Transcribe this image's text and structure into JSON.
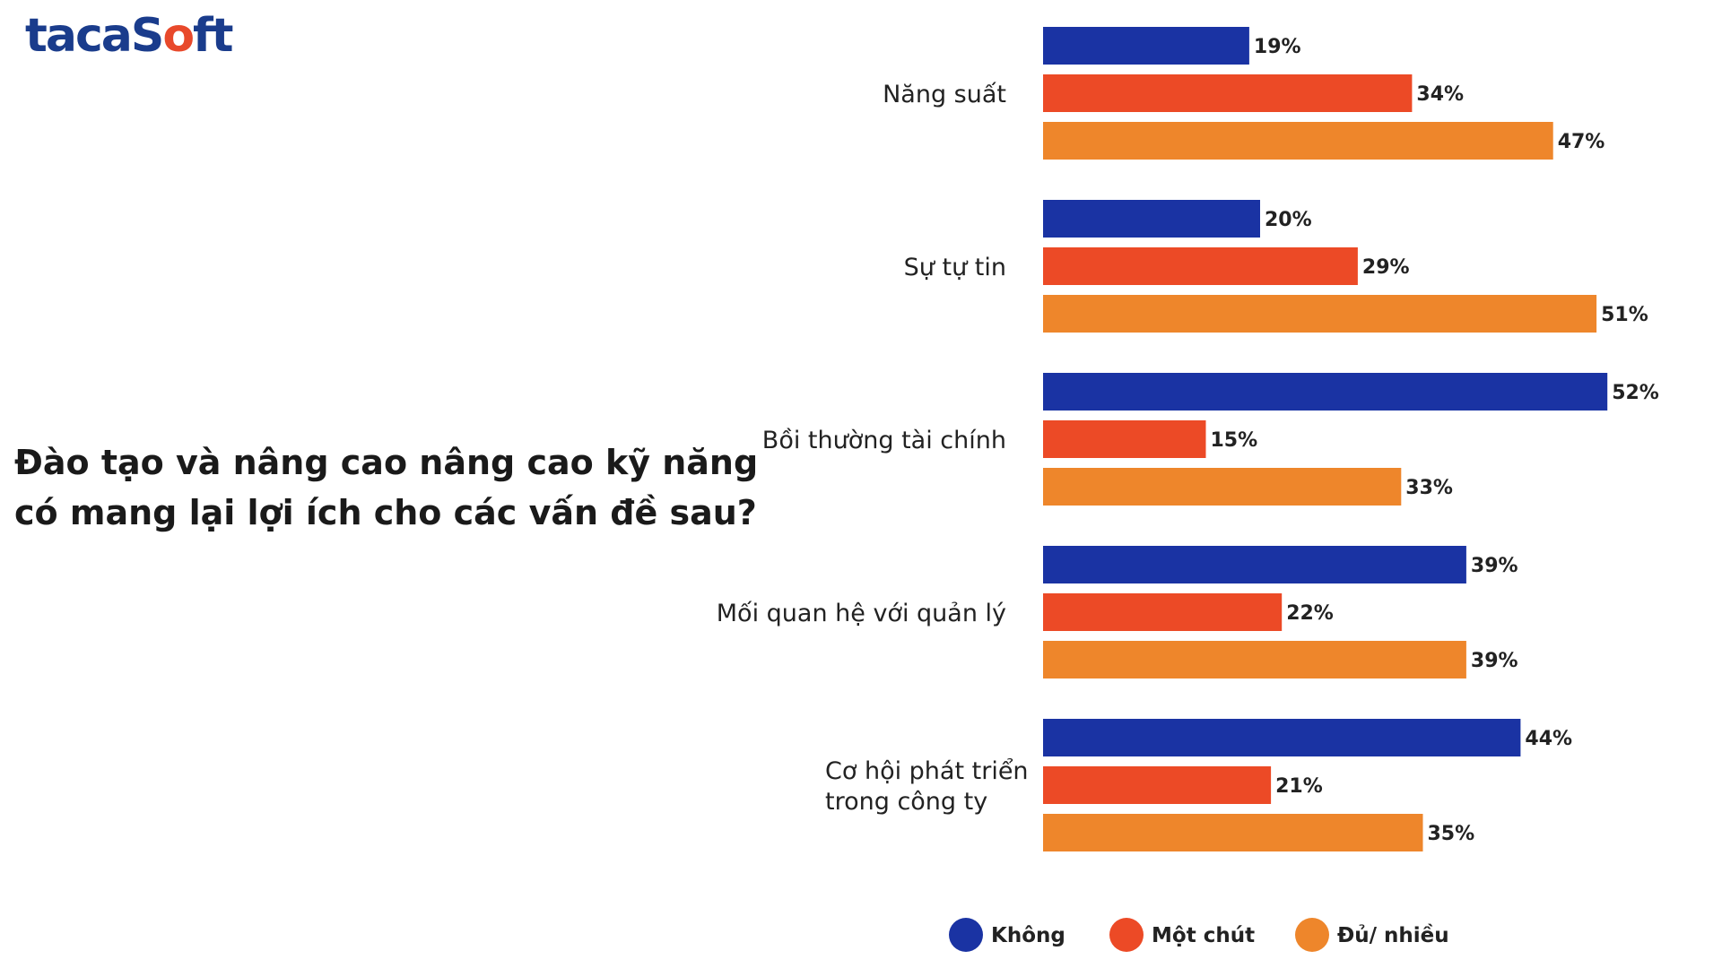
{
  "brand": {
    "logo_text_pre": "tacaS",
    "logo_text_accent": "o",
    "logo_text_post": "ft"
  },
  "question": {
    "line1": "Đào tạo và nâng cao nâng cao kỹ năng",
    "line2": "có mang lại lợi ích cho các vấn đề sau?"
  },
  "colors": {
    "brand_blue": "#1a3c8c",
    "brand_orange": "#e8492b"
  },
  "chart_data": {
    "type": "bar",
    "orientation": "horizontal",
    "categories": [
      [
        "Năng suất"
      ],
      [
        "Sự tự tin"
      ],
      [
        "Bồi thường tài chính"
      ],
      [
        "Mối quan hệ với quản lý"
      ],
      [
        "Cơ hội phát triển",
        "trong công ty"
      ]
    ],
    "series": [
      {
        "name": "Không",
        "color": "#1a33a3",
        "values": [
          19,
          20,
          52,
          39,
          44
        ]
      },
      {
        "name": "Một chút",
        "color": "#ec4a26",
        "values": [
          34,
          29,
          15,
          22,
          21
        ]
      },
      {
        "name": "Đủ/ nhiều",
        "color": "#ee862b",
        "values": [
          47,
          51,
          33,
          39,
          35
        ]
      }
    ],
    "value_suffix": "%",
    "xlim": [
      0,
      60
    ],
    "legend": "bottom",
    "grid": false
  }
}
